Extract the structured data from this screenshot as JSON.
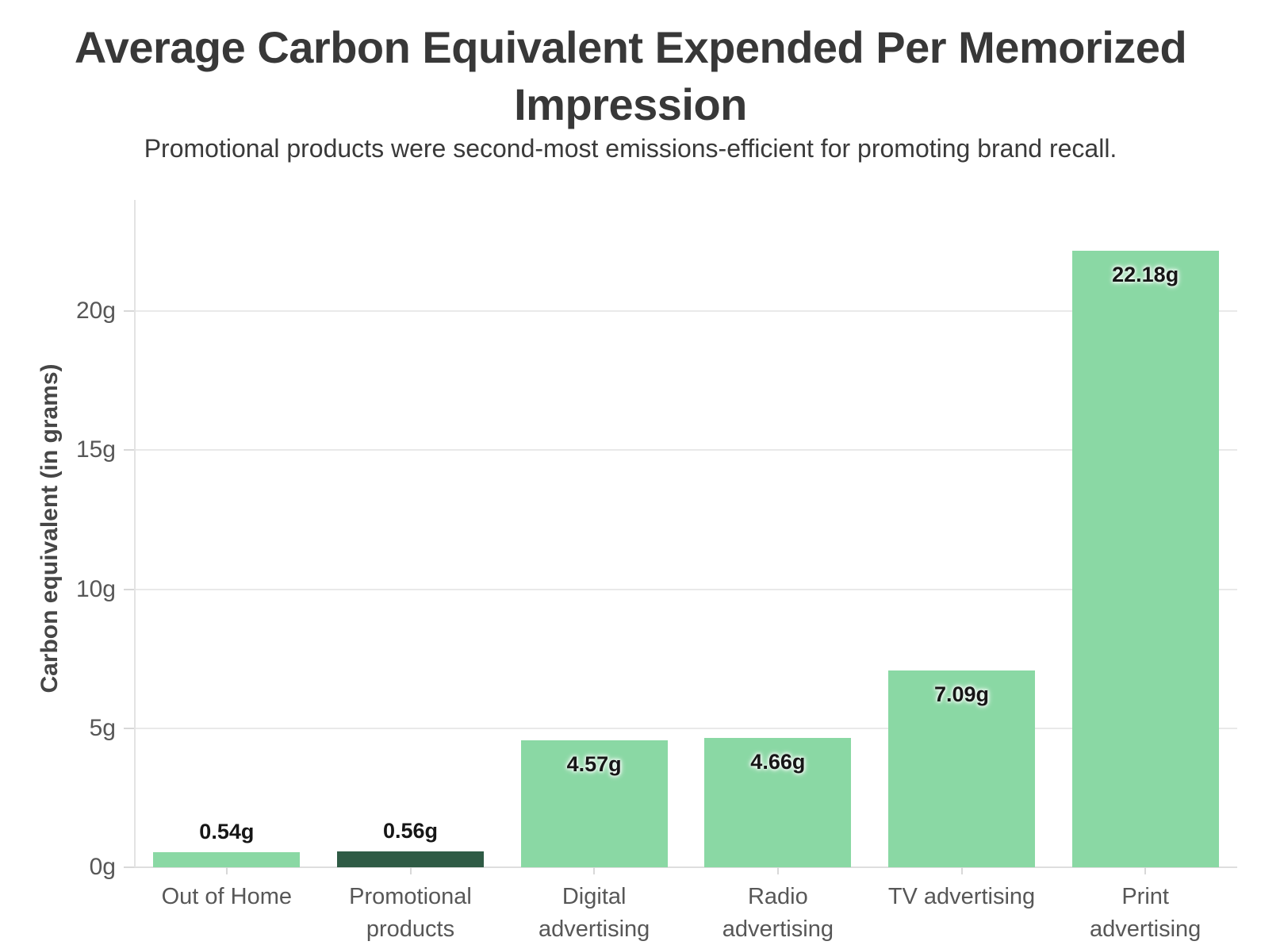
{
  "page": {
    "title": "Average Carbon Equivalent Expended Per Memorized Impression",
    "subtitle": "Promotional products were second-most emissions-efficient for promoting brand recall."
  },
  "chart_data": {
    "type": "bar",
    "title": "Average Carbon Equivalent Expended Per Memorized Impression",
    "subtitle": "Promotional products were second-most emissions-efficient for promoting brand recall.",
    "xlabel": "",
    "ylabel": "Carbon equivalent (in grams)",
    "categories": [
      "Out of Home",
      "Promotional products",
      "Digital advertising",
      "Radio advertising",
      "TV advertising",
      "Print advertising"
    ],
    "category_display": [
      "Out of Home",
      "Promotional\nproducts",
      "Digital\nadvertising",
      "Radio\nadvertising",
      "TV advertising",
      "Print\nadvertising"
    ],
    "values": [
      0.54,
      0.56,
      4.57,
      4.66,
      7.09,
      22.18
    ],
    "value_labels": [
      "0.54g",
      "0.56g",
      "4.57g",
      "4.66g",
      "7.09g",
      "22.18g"
    ],
    "highlight_index": 1,
    "yticks": [
      0,
      5,
      10,
      15,
      20
    ],
    "ytick_labels": [
      "0g",
      "5g",
      "10g",
      "15g",
      "20g"
    ],
    "ylim": [
      0,
      24
    ],
    "grid": "horizontal-only",
    "legend": "none",
    "colors": {
      "bar": "#8ad8a4",
      "bar_highlight": "#2f5b45",
      "grid": "#e9e9e9",
      "axis": "#dedede",
      "title_text": "#383838",
      "axis_text": "#575757",
      "value_text": "#161616"
    }
  }
}
